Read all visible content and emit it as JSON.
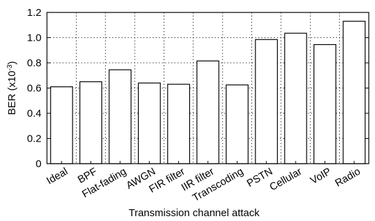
{
  "chart_data": {
    "type": "bar",
    "xlabel": "Transmission channel attack",
    "ylabel_main": "BER (x10",
    "ylabel_exp": "-3",
    "ylabel_close": ")",
    "categories": [
      "Ideal",
      "BPF",
      "Flat-fading",
      "AWGN",
      "FIR filter",
      "IIR filter",
      "Transcoding",
      "PSTN",
      "Cellular",
      "VoIP",
      "Radio"
    ],
    "values": [
      0.61,
      0.65,
      0.745,
      0.64,
      0.63,
      0.815,
      0.625,
      0.985,
      1.035,
      0.945,
      1.13
    ],
    "ylim": [
      0,
      1.2
    ],
    "yticks": [
      0,
      0.2,
      0.4,
      0.6,
      0.8,
      1.0,
      1.2
    ],
    "ytick_labels": [
      "0",
      "0.2",
      "0.4",
      "0.6",
      "0.8",
      "1.0",
      "1.2"
    ],
    "grid": true,
    "bar_color": "#ffffff",
    "edge_color": "#000000"
  }
}
